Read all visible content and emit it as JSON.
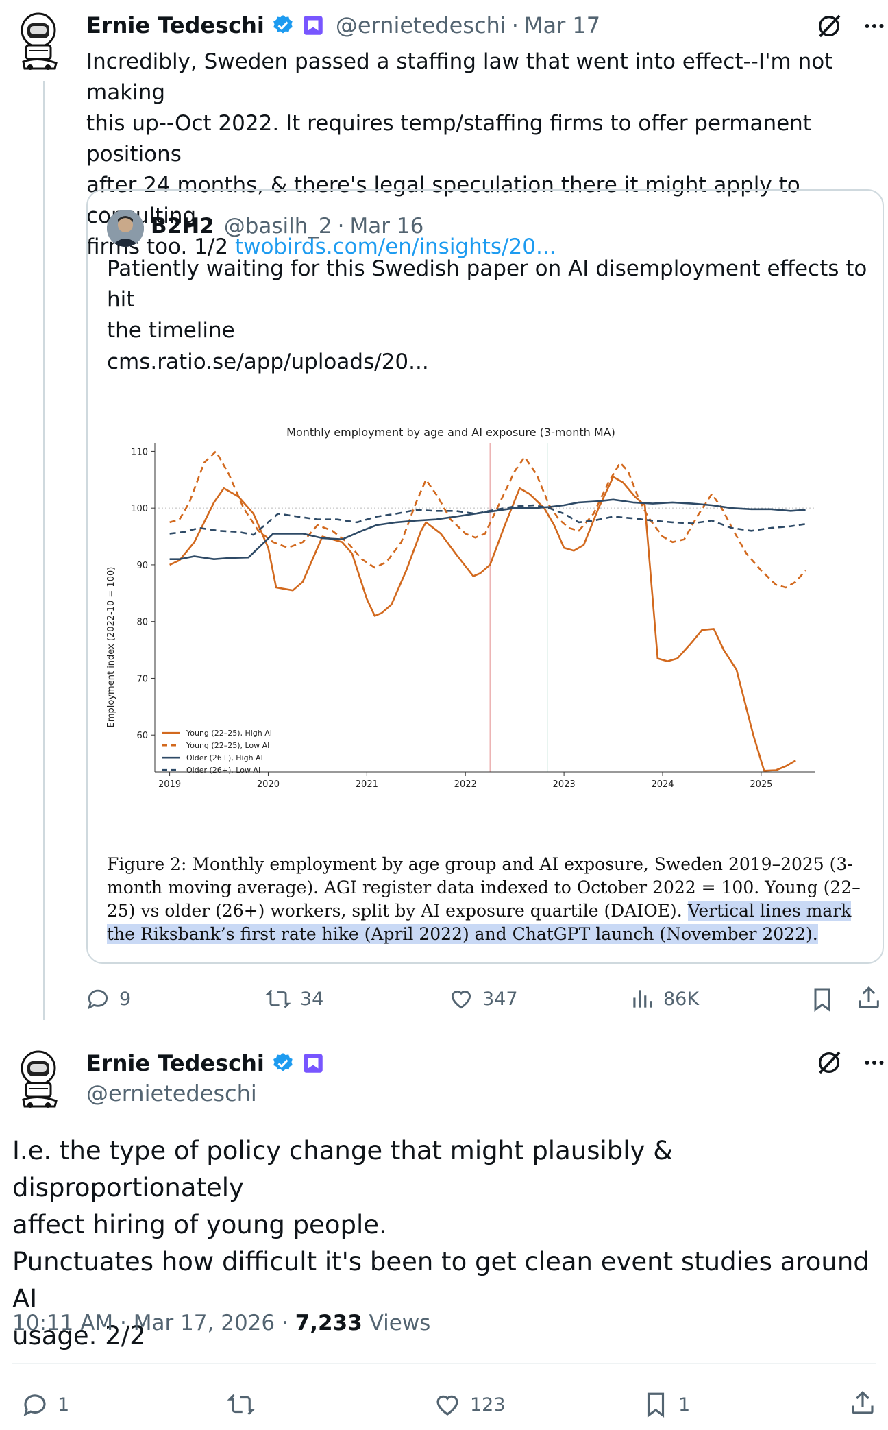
{
  "tweet1": {
    "name": "Ernie Tedeschi",
    "handle": "@ernietedeschi",
    "date": "Mar 17",
    "text_lines": [
      "Incredibly, Sweden passed a staffing law that went into effect--I'm not making",
      "this up--Oct 2022. It requires temp/staffing firms to offer permanent positions",
      "after 24 months, & there's legal speculation there it might apply to consulting",
      "firms too. 1/2 "
    ],
    "link": "twobirds.com/en/insights/20...",
    "stats": {
      "replies": "9",
      "reposts": "34",
      "likes": "347",
      "views": "86K"
    }
  },
  "quote": {
    "name": "B2H2",
    "handle": "@basilh_2",
    "date": "Mar 16",
    "text_lines": [
      "Patiently waiting for this Swedish paper on AI disemployment effects to hit",
      "the timeline"
    ],
    "url": "cms.ratio.se/app/uploads/20...",
    "caption_plain": "Figure 2: Monthly employment by age group and AI exposure, Sweden 2019–2025 (3-month moving average). AGI register data indexed to October 2022 = 100. Young (22–25) vs older (26+) workers, split by AI exposure quartile (DAIOE). ",
    "caption_highlight": "Vertical lines mark the Riksbank’s first rate hike (April 2022) and ChatGPT launch (November 2022)."
  },
  "chart_data": {
    "type": "line",
    "title": "Monthly employment by age and AI exposure (3-month MA)",
    "xlabel": "",
    "ylabel": "Employment index (2022-10 = 100)",
    "xlim": [
      2018.85,
      2025.55
    ],
    "ylim": [
      53.5,
      111.5
    ],
    "x_ticks": [
      "2019",
      "2020",
      "2021",
      "2022",
      "2023",
      "2024",
      "2025"
    ],
    "y_ticks": [
      "60",
      "70",
      "80",
      "90",
      "100",
      "110"
    ],
    "reference_lines": [
      2022.25,
      2022.83
    ],
    "grid": false,
    "legend_position": "lower-left",
    "series": [
      {
        "name": "Young (22–25), High AI",
        "color": "#d2691e",
        "dash": "solid",
        "points": [
          [
            2019.0,
            90
          ],
          [
            2019.1,
            90.8
          ],
          [
            2019.25,
            94
          ],
          [
            2019.45,
            101
          ],
          [
            2019.55,
            103.5
          ],
          [
            2019.7,
            102
          ],
          [
            2019.85,
            99
          ],
          [
            2020.0,
            93
          ],
          [
            2020.08,
            86
          ],
          [
            2020.25,
            85.5
          ],
          [
            2020.35,
            87
          ],
          [
            2020.55,
            95
          ],
          [
            2020.75,
            94
          ],
          [
            2020.85,
            92
          ],
          [
            2021.0,
            84
          ],
          [
            2021.08,
            81
          ],
          [
            2021.15,
            81.5
          ],
          [
            2021.25,
            83
          ],
          [
            2021.4,
            89
          ],
          [
            2021.55,
            96
          ],
          [
            2021.6,
            97.5
          ],
          [
            2021.75,
            95.5
          ],
          [
            2021.9,
            92
          ],
          [
            2022.08,
            88
          ],
          [
            2022.15,
            88.5
          ],
          [
            2022.25,
            90
          ],
          [
            2022.4,
            97
          ],
          [
            2022.55,
            103.5
          ],
          [
            2022.65,
            102.5
          ],
          [
            2022.8,
            100
          ],
          [
            2022.9,
            97
          ],
          [
            2023.0,
            93
          ],
          [
            2023.1,
            92.5
          ],
          [
            2023.2,
            93.5
          ],
          [
            2023.35,
            100
          ],
          [
            2023.5,
            105.5
          ],
          [
            2023.6,
            104.5
          ],
          [
            2023.72,
            102
          ],
          [
            2023.82,
            100.5
          ],
          [
            2023.95,
            73.5
          ],
          [
            2024.05,
            73
          ],
          [
            2024.15,
            73.5
          ],
          [
            2024.28,
            76
          ],
          [
            2024.4,
            78.5
          ],
          [
            2024.52,
            78.7
          ],
          [
            2024.62,
            75
          ],
          [
            2024.75,
            71.5
          ],
          [
            2024.92,
            60
          ],
          [
            2025.03,
            53.7
          ],
          [
            2025.15,
            53.8
          ],
          [
            2025.25,
            54.5
          ],
          [
            2025.35,
            55.5
          ]
        ]
      },
      {
        "name": "Young (22–25), Low AI",
        "color": "#d2691e",
        "dash": "dashed",
        "points": [
          [
            2019.0,
            97.5
          ],
          [
            2019.1,
            98
          ],
          [
            2019.2,
            101
          ],
          [
            2019.35,
            108
          ],
          [
            2019.47,
            110
          ],
          [
            2019.6,
            106
          ],
          [
            2019.75,
            100
          ],
          [
            2019.9,
            96
          ],
          [
            2020.05,
            94
          ],
          [
            2020.2,
            93
          ],
          [
            2020.35,
            94
          ],
          [
            2020.5,
            97
          ],
          [
            2020.65,
            96
          ],
          [
            2020.8,
            94
          ],
          [
            2020.95,
            91
          ],
          [
            2021.08,
            89.5
          ],
          [
            2021.2,
            90.5
          ],
          [
            2021.35,
            94
          ],
          [
            2021.5,
            101
          ],
          [
            2021.6,
            105
          ],
          [
            2021.72,
            102
          ],
          [
            2021.85,
            98
          ],
          [
            2022.0,
            95.5
          ],
          [
            2022.1,
            94.8
          ],
          [
            2022.2,
            95.5
          ],
          [
            2022.35,
            101
          ],
          [
            2022.5,
            106.5
          ],
          [
            2022.6,
            109
          ],
          [
            2022.72,
            106
          ],
          [
            2022.85,
            100.5
          ],
          [
            2022.95,
            98
          ],
          [
            2023.05,
            96.5
          ],
          [
            2023.15,
            96
          ],
          [
            2023.3,
            99
          ],
          [
            2023.45,
            104.5
          ],
          [
            2023.57,
            108
          ],
          [
            2023.65,
            106.5
          ],
          [
            2023.75,
            102
          ],
          [
            2023.85,
            98.5
          ],
          [
            2024.0,
            95
          ],
          [
            2024.1,
            94
          ],
          [
            2024.22,
            94.5
          ],
          [
            2024.35,
            98.5
          ],
          [
            2024.5,
            102.5
          ],
          [
            2024.6,
            100
          ],
          [
            2024.72,
            96
          ],
          [
            2024.85,
            92
          ],
          [
            2025.0,
            89
          ],
          [
            2025.15,
            86.5
          ],
          [
            2025.25,
            86
          ],
          [
            2025.35,
            87
          ],
          [
            2025.45,
            89
          ]
        ]
      },
      {
        "name": "Older (26+), High AI",
        "color": "#2e4a66",
        "dash": "solid",
        "points": [
          [
            2019.0,
            91
          ],
          [
            2019.1,
            91
          ],
          [
            2019.25,
            91.5
          ],
          [
            2019.45,
            91
          ],
          [
            2019.6,
            91.2
          ],
          [
            2019.8,
            91.3
          ],
          [
            2020.05,
            95.5
          ],
          [
            2020.35,
            95.5
          ],
          [
            2020.55,
            94.7
          ],
          [
            2020.75,
            94.5
          ],
          [
            2020.95,
            96
          ],
          [
            2021.1,
            97
          ],
          [
            2021.3,
            97.5
          ],
          [
            2021.5,
            97.8
          ],
          [
            2021.7,
            98
          ],
          [
            2021.9,
            98.5
          ],
          [
            2022.1,
            99
          ],
          [
            2022.3,
            99.5
          ],
          [
            2022.5,
            100
          ],
          [
            2022.7,
            100
          ],
          [
            2022.85,
            100.2
          ],
          [
            2023.0,
            100.5
          ],
          [
            2023.15,
            101
          ],
          [
            2023.35,
            101.2
          ],
          [
            2023.5,
            101.5
          ],
          [
            2023.7,
            101
          ],
          [
            2023.9,
            100.8
          ],
          [
            2024.1,
            101
          ],
          [
            2024.3,
            100.8
          ],
          [
            2024.5,
            100.5
          ],
          [
            2024.7,
            100
          ],
          [
            2024.9,
            99.8
          ],
          [
            2025.1,
            99.8
          ],
          [
            2025.3,
            99.5
          ],
          [
            2025.45,
            99.7
          ]
        ]
      },
      {
        "name": "Older (26+), Low AI",
        "color": "#2e4a66",
        "dash": "dashed",
        "points": [
          [
            2019.0,
            95.5
          ],
          [
            2019.15,
            95.8
          ],
          [
            2019.3,
            96.5
          ],
          [
            2019.5,
            96
          ],
          [
            2019.7,
            95.8
          ],
          [
            2019.85,
            95.3
          ],
          [
            2020.1,
            99
          ],
          [
            2020.3,
            98.5
          ],
          [
            2020.5,
            98
          ],
          [
            2020.7,
            98
          ],
          [
            2020.9,
            97.5
          ],
          [
            2021.1,
            98.5
          ],
          [
            2021.3,
            99
          ],
          [
            2021.5,
            99.7
          ],
          [
            2021.7,
            99.5
          ],
          [
            2021.9,
            99.5
          ],
          [
            2022.1,
            99
          ],
          [
            2022.3,
            99.7
          ],
          [
            2022.5,
            100.3
          ],
          [
            2022.7,
            100.5
          ],
          [
            2022.85,
            100
          ],
          [
            2023.0,
            99
          ],
          [
            2023.15,
            97.5
          ],
          [
            2023.3,
            97.8
          ],
          [
            2023.5,
            98.5
          ],
          [
            2023.7,
            98.2
          ],
          [
            2023.9,
            97.8
          ],
          [
            2024.1,
            97.5
          ],
          [
            2024.3,
            97.3
          ],
          [
            2024.5,
            97.8
          ],
          [
            2024.7,
            96.5
          ],
          [
            2024.9,
            96
          ],
          [
            2025.1,
            96.5
          ],
          [
            2025.3,
            96.8
          ],
          [
            2025.45,
            97.2
          ]
        ]
      }
    ]
  },
  "tweet2": {
    "name": "Ernie Tedeschi",
    "handle": "@ernietedeschi",
    "text_lines": [
      "I.e. the type of policy change that might plausibly & disproportionately",
      "affect hiring of young people.",
      "Punctuates how difficult it's been to get clean event studies around AI",
      "usage. 2/2"
    ],
    "time": "10:11 AM",
    "date": "Mar 17, 2026",
    "views_count": "7,233",
    "views_label": " Views",
    "stats": {
      "replies": "1",
      "likes": "123",
      "bookmarks": "1"
    }
  },
  "colors": {
    "link": "#1d9bf0",
    "verified": "#1d9bf0",
    "subscriber": "#7856ff",
    "muted": "#536471"
  },
  "icons": [
    "more-icon",
    "grok-icon",
    "reply-icon",
    "repost-icon",
    "like-icon",
    "views-icon",
    "bookmark-icon",
    "share-icon",
    "verified-icon",
    "subscriber-icon"
  ]
}
